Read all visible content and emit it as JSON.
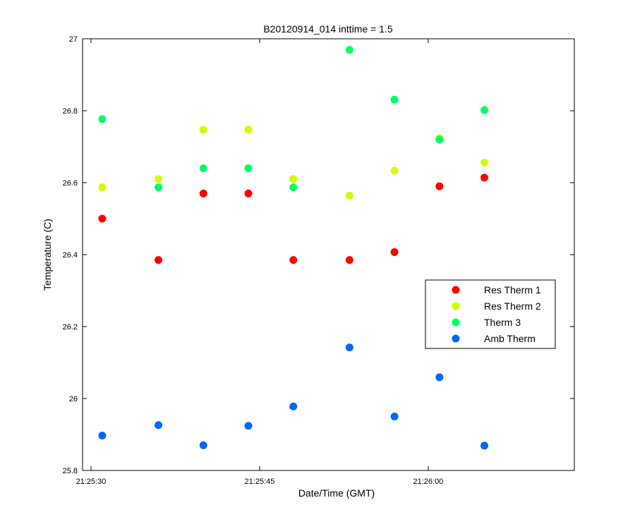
{
  "chart_data": {
    "type": "scatter",
    "title": "B20120914_014 inttime = 1.5",
    "xlabel": "Date/Time (GMT)",
    "ylabel": "Temperature (C)",
    "x_axis_format": "HH:MM:SS",
    "xlim": [
      "21:25:30",
      "21:26:13"
    ],
    "ylim": [
      25.8,
      27
    ],
    "xticks": [
      "21:25:30",
      "21:25:45",
      "21:26:00"
    ],
    "yticks": [
      25.8,
      26,
      26.2,
      26.4,
      26.6,
      26.8,
      27
    ],
    "ytick_labels": [
      "25.8",
      "26",
      "26.2",
      "26.4",
      "26.6",
      "26.8",
      "27"
    ],
    "grid": false,
    "legend_position": "right",
    "x": [
      "21:25:31",
      "21:25:36",
      "21:25:40",
      "21:25:44",
      "21:25:48",
      "21:25:53",
      "21:25:57",
      "21:26:01",
      "21:26:05"
    ],
    "series": [
      {
        "name": "Res Therm 1",
        "color": "#ff0000",
        "values": [
          26.5,
          26.385,
          26.57,
          26.57,
          26.385,
          26.385,
          26.407,
          26.59,
          26.614
        ]
      },
      {
        "name": "Res Therm 2",
        "color": "#ccff00",
        "values": [
          26.587,
          26.61,
          26.747,
          26.747,
          26.61,
          26.564,
          26.633,
          26.724,
          26.656
        ]
      },
      {
        "name": "Therm 3",
        "color": "#00ff66",
        "values": [
          26.777,
          26.587,
          26.64,
          26.64,
          26.587,
          26.969,
          26.831,
          26.72,
          26.802
        ]
      },
      {
        "name": "Amb Therm",
        "color": "#0066ff",
        "values": [
          25.897,
          25.926,
          25.87,
          25.924,
          25.978,
          26.142,
          25.95,
          26.059,
          25.869
        ]
      }
    ]
  }
}
